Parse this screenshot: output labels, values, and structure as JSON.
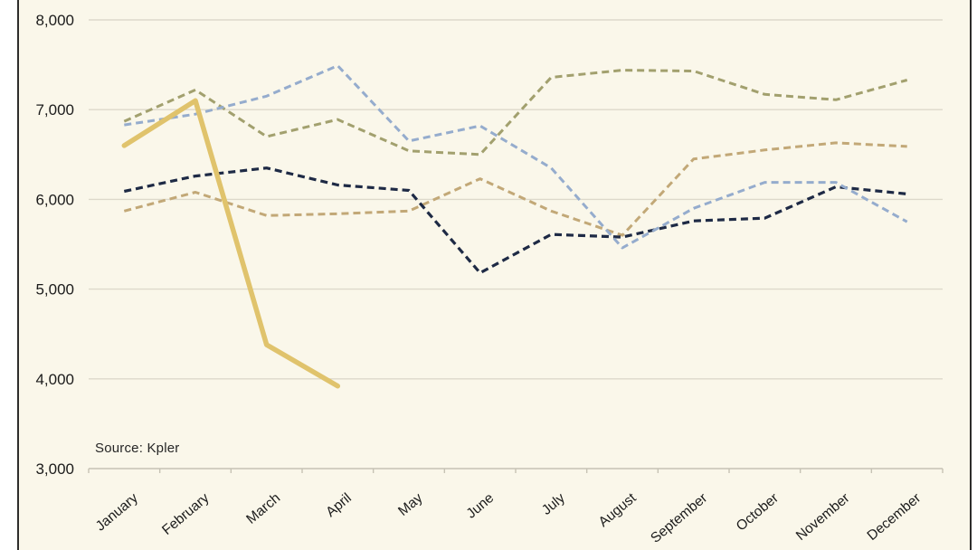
{
  "chart_data": {
    "type": "line",
    "title": "",
    "source": "Source: Kpler",
    "legend": "none",
    "grid": "horizontal",
    "background_color": "#faf7ea",
    "gridline_color": "#ddd9cb",
    "axis_color": "#c6c2b4",
    "x_categories": [
      "January",
      "February",
      "March",
      "April",
      "May",
      "June",
      "July",
      "August",
      "September",
      "October",
      "November",
      "December"
    ],
    "y_axis": {
      "min": 3000,
      "max": 8000,
      "tick_step": 1000,
      "tick_labels": [
        "3,000",
        "4,000",
        "5,000",
        "6,000",
        "7,000",
        "8,000"
      ]
    },
    "series": [
      {
        "name": "olive-dashed",
        "style": "dashed",
        "color": "#a2a06e",
        "width": 3,
        "values": [
          6870,
          7220,
          6700,
          6890,
          6540,
          6500,
          7360,
          7440,
          7430,
          7170,
          7110,
          7330
        ]
      },
      {
        "name": "tan-dashed",
        "style": "dashed",
        "color": "#c2a877",
        "width": 3,
        "values": [
          5870,
          6080,
          5820,
          5840,
          5870,
          6230,
          5870,
          5600,
          6450,
          6550,
          6630,
          6590
        ]
      },
      {
        "name": "dark-navy-dashed",
        "style": "dashed",
        "color": "#1e2a45",
        "width": 3.2,
        "values": [
          6090,
          6260,
          6350,
          6160,
          6100,
          5180,
          5610,
          5580,
          5760,
          5790,
          6140,
          6060
        ]
      },
      {
        "name": "light-blue-dashed",
        "style": "dashed",
        "color": "#95accd",
        "width": 3,
        "values": [
          6830,
          6950,
          7150,
          7490,
          6650,
          6820,
          6350,
          5460,
          5900,
          6190,
          6190,
          5750
        ]
      },
      {
        "name": "gold-solid",
        "style": "solid",
        "color": "#e0c36c",
        "width": 5.5,
        "values": [
          6600,
          7100,
          4380,
          3920,
          null,
          null,
          null,
          null,
          null,
          null,
          null,
          null
        ]
      }
    ]
  }
}
